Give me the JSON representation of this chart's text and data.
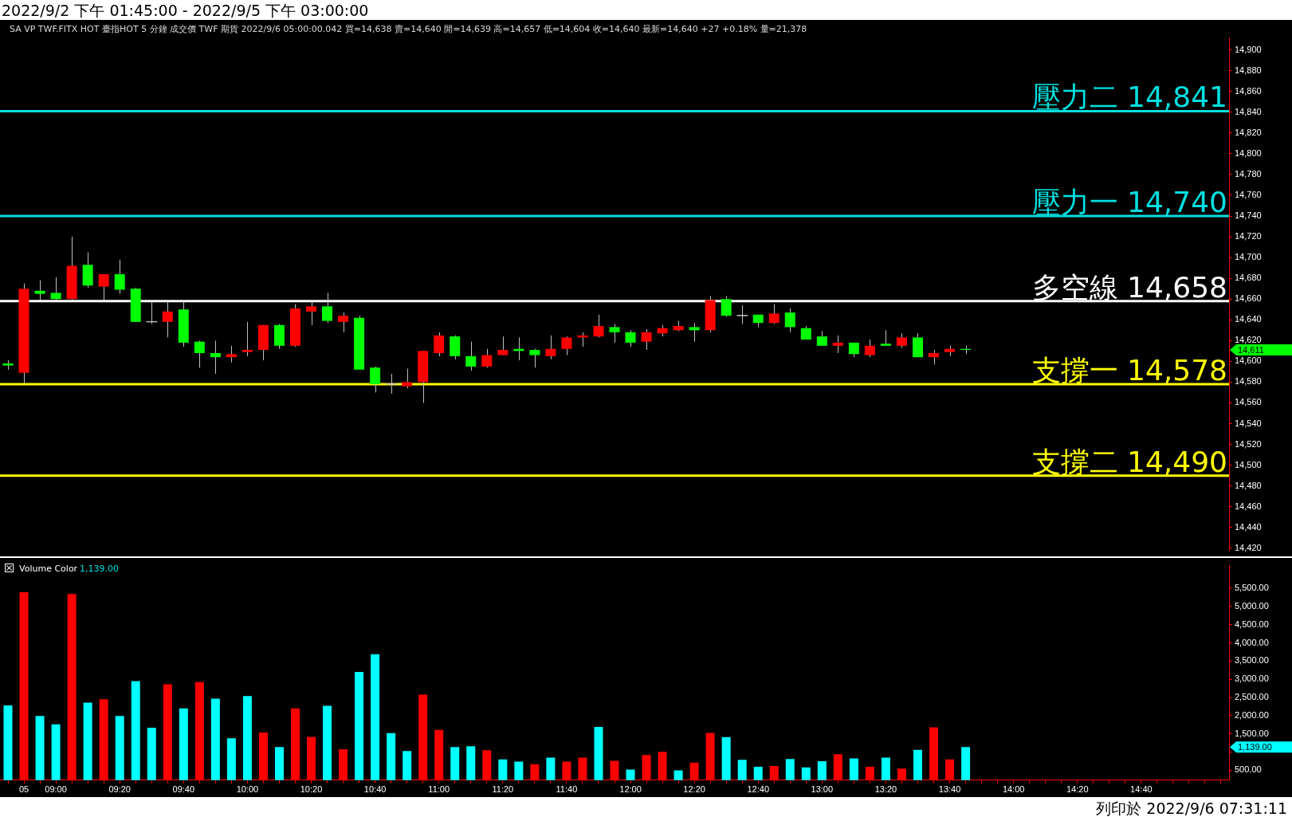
{
  "chart_data": [
    {
      "type": "candlestick",
      "title": "2022/9/2 下午 01:45:00 - 2022/9/5 下午 03:00:00",
      "subtitle": "SA VP TWF.FITX HOT 臺指HOT 5 分鐘 成交價 TWF 期貨 2022/9/6 05:00:00.042 買=14,638 賣=14,640 開=14,639 高=14,657 低=14,604 收=14,640 最新=14,640 +27 +0.18% 量=21,378",
      "categories": [
        null,
        null,
        null,
        null,
        null,
        null,
        null,
        null,
        null,
        null,
        null,
        null,
        null,
        null,
        null,
        null,
        null,
        null,
        null,
        null,
        null,
        null,
        null,
        null,
        null,
        null,
        null,
        null,
        null,
        null,
        null,
        null,
        null,
        null,
        null,
        null,
        null,
        null,
        null,
        null,
        null,
        null,
        null,
        null,
        null,
        null,
        null,
        null,
        null,
        null,
        null,
        null,
        null,
        null,
        null,
        null,
        null,
        null,
        null,
        null,
        null,
        null,
        null,
        null,
        null,
        null,
        null,
        null,
        null,
        null,
        null,
        null,
        null,
        null,
        null,
        null,
        null
      ],
      "ohlc": [
        [
          14598,
          14601,
          14592,
          14596
        ],
        [
          14589,
          14675,
          14579,
          14670
        ],
        [
          14668,
          14678,
          14659,
          14665
        ],
        [
          14666,
          14681,
          14659,
          14660
        ],
        [
          14660,
          14720,
          14659,
          14692
        ],
        [
          14693,
          14705,
          14671,
          14673
        ],
        [
          14672,
          14684,
          14659,
          14684
        ],
        [
          14684,
          14698,
          14665,
          14669
        ],
        [
          14670,
          14671,
          14638,
          14638
        ],
        [
          14638,
          14657,
          14636,
          14638
        ],
        [
          14638,
          14657,
          14623,
          14648
        ],
        [
          14650,
          14657,
          14614,
          14618
        ],
        [
          14619,
          14620,
          14594,
          14608
        ],
        [
          14608,
          14620,
          14588,
          14604
        ],
        [
          14604,
          14615,
          14599,
          14607
        ],
        [
          14609,
          14638,
          14605,
          14611
        ],
        [
          14611,
          14635,
          14601,
          14635
        ],
        [
          14635,
          14636,
          14612,
          14615
        ],
        [
          14615,
          14655,
          14614,
          14651
        ],
        [
          14648,
          14657,
          14635,
          14653
        ],
        [
          14653,
          14666,
          14637,
          14639
        ],
        [
          14638,
          14647,
          14628,
          14644
        ],
        [
          14642,
          14644,
          14592,
          14592
        ],
        [
          14594,
          14595,
          14570,
          14578
        ],
        [
          14578,
          14588,
          14569,
          14578
        ],
        [
          14576,
          14593,
          14574,
          14580
        ],
        [
          14580,
          14610,
          14560,
          14610
        ],
        [
          14608,
          14628,
          14605,
          14625
        ],
        [
          14624,
          14625,
          14602,
          14605
        ],
        [
          14605,
          14619,
          14591,
          14595
        ],
        [
          14595,
          14612,
          14594,
          14606
        ],
        [
          14606,
          14624,
          14606,
          14611
        ],
        [
          14612,
          14623,
          14601,
          14610
        ],
        [
          14611,
          14612,
          14594,
          14606
        ],
        [
          14605,
          14625,
          14602,
          14612
        ],
        [
          14612,
          14624,
          14606,
          14623
        ],
        [
          14623,
          14628,
          14614,
          14625
        ],
        [
          14624,
          14645,
          14623,
          14634
        ],
        [
          14633,
          14636,
          14618,
          14628
        ],
        [
          14628,
          14630,
          14614,
          14618
        ],
        [
          14619,
          14631,
          14611,
          14628
        ],
        [
          14627,
          14635,
          14624,
          14632
        ],
        [
          14630,
          14639,
          14629,
          14634
        ],
        [
          14633,
          14637,
          14619,
          14630
        ],
        [
          14630,
          14663,
          14628,
          14659
        ],
        [
          14660,
          14663,
          14643,
          14644
        ],
        [
          14644,
          14654,
          14636,
          14644
        ],
        [
          14645,
          14645,
          14633,
          14637
        ],
        [
          14637,
          14655,
          14636,
          14646
        ],
        [
          14647,
          14651,
          14628,
          14633
        ],
        [
          14632,
          14634,
          14621,
          14621
        ],
        [
          14624,
          14629,
          14615,
          14615
        ],
        [
          14615,
          14625,
          14608,
          14618
        ],
        [
          14618,
          14618,
          14604,
          14607
        ],
        [
          14606,
          14621,
          14604,
          14615
        ],
        [
          14617,
          14630,
          14615,
          14615
        ],
        [
          14615,
          14627,
          14613,
          14623
        ],
        [
          14623,
          14627,
          14604,
          14604
        ],
        [
          14604,
          14611,
          14597,
          14608
        ],
        [
          14609,
          14615,
          14605,
          14612
        ],
        [
          14612,
          14615,
          14607,
          14611
        ],
        null,
        null,
        null,
        null,
        null,
        null,
        null,
        null,
        null,
        null,
        null,
        null,
        null,
        null,
        null,
        null
      ],
      "colors": [
        "#00ff00",
        "#ff0000",
        "#00ff00",
        "#00ff00",
        "#ff0000",
        "#00ff00",
        "#ff0000",
        "#00ff00",
        "#00ff00",
        "#c0c0c0",
        "#ff0000",
        "#00ff00",
        "#00ff00",
        "#00ff00",
        "#ff0000",
        "#ff0000",
        "#ff0000",
        "#00ff00",
        "#ff0000",
        "#ff0000",
        "#00ff00",
        "#ff0000",
        "#00ff00",
        "#00ff00",
        "#c0c0c0",
        "#ff0000",
        "#ff0000",
        "#ff0000",
        "#00ff00",
        "#00ff00",
        "#ff0000",
        "#ff0000",
        "#00ff00",
        "#00ff00",
        "#ff0000",
        "#ff0000",
        "#ff0000",
        "#ff0000",
        "#00ff00",
        "#00ff00",
        "#ff0000",
        "#ff0000",
        "#ff0000",
        "#00ff00",
        "#ff0000",
        "#00ff00",
        "#c0c0c0",
        "#00ff00",
        "#ff0000",
        "#00ff00",
        "#00ff00",
        "#00ff00",
        "#ff0000",
        "#00ff00",
        "#ff0000",
        "#00ff00",
        "#ff0000",
        "#00ff00",
        "#ff0000",
        "#ff0000",
        "#00ff00",
        null,
        null,
        null,
        null,
        null,
        null,
        null,
        null,
        null,
        null,
        null,
        null,
        null,
        null,
        null,
        null
      ],
      "ylim": [
        14418,
        14912
      ],
      "yticks": [
        {
          "value": 14420,
          "label": "14,420"
        },
        {
          "value": 14440,
          "label": "14,440"
        },
        {
          "value": 14460,
          "label": "14,460"
        },
        {
          "value": 14480,
          "label": "14,480"
        },
        {
          "value": 14500,
          "label": "14,500"
        },
        {
          "value": 14520,
          "label": "14,520"
        },
        {
          "value": 14540,
          "label": "14,540"
        },
        {
          "value": 14560,
          "label": "14,560"
        },
        {
          "value": 14580,
          "label": "14,580"
        },
        {
          "value": 14600,
          "label": "14,600"
        },
        {
          "value": 14620,
          "label": "14,620"
        },
        {
          "value": 14640,
          "label": "14,640"
        },
        {
          "value": 14660,
          "label": "14,660"
        },
        {
          "value": 14680,
          "label": "14,680"
        },
        {
          "value": 14700,
          "label": "14,700"
        },
        {
          "value": 14720,
          "label": "14,720"
        },
        {
          "value": 14740,
          "label": "14,740"
        },
        {
          "value": 14760,
          "label": "14,760"
        },
        {
          "value": 14780,
          "label": "14,780"
        },
        {
          "value": 14800,
          "label": "14,800"
        },
        {
          "value": 14820,
          "label": "14,820"
        },
        {
          "value": 14840,
          "label": "14,840"
        },
        {
          "value": 14860,
          "label": "14,860"
        },
        {
          "value": 14880,
          "label": "14,880"
        },
        {
          "value": 14900,
          "label": "14,900"
        }
      ],
      "ref_lines": [
        {
          "axis": "y",
          "value": 14841,
          "label": "壓力二 14,841",
          "color": "#00e0e0"
        },
        {
          "axis": "y",
          "value": 14740,
          "label": "壓力一 14,740",
          "color": "#00e0e0"
        },
        {
          "axis": "y",
          "value": 14658,
          "label": "多空線 14,658",
          "color": "#ffffff"
        },
        {
          "axis": "y",
          "value": 14578,
          "label": "支撐一 14,578",
          "color": "#ffff00"
        },
        {
          "axis": "y",
          "value": 14490,
          "label": "支撐二 14,490",
          "color": "#ffff00"
        }
      ],
      "annotations": [
        "14,611"
      ],
      "tick_labels": "y"
    },
    {
      "type": "bar",
      "title": "Volume Color",
      "subtitle": "1,139.00",
      "categories": [
        null,
        "05",
        null,
        "09:00",
        null,
        null,
        null,
        "09:20",
        null,
        null,
        null,
        "09:40",
        null,
        null,
        null,
        "10:00",
        null,
        null,
        null,
        "10:20",
        null,
        null,
        null,
        "10:40",
        null,
        null,
        null,
        "11:00",
        null,
        null,
        null,
        "11:20",
        null,
        null,
        null,
        "11:40",
        null,
        null,
        null,
        "12:00",
        null,
        null,
        null,
        "12:20",
        null,
        null,
        null,
        "12:40",
        null,
        null,
        null,
        "13:00",
        null,
        null,
        null,
        "13:20",
        null,
        null,
        null,
        "13:40",
        null,
        null,
        null,
        "14:00",
        null,
        null,
        null,
        "14:20",
        null,
        null,
        null,
        "14:40",
        null,
        null,
        null,
        null,
        null
      ],
      "values": [
        2280,
        5390,
        1990,
        1760,
        5340,
        2360,
        2450,
        1990,
        2950,
        1670,
        2860,
        2200,
        2920,
        2470,
        1380,
        2540,
        1540,
        1140,
        2200,
        1420,
        2270,
        1080,
        3200,
        3690,
        1520,
        1030,
        2580,
        1610,
        1140,
        1160,
        1050,
        800,
        740,
        670,
        850,
        740,
        850,
        1690,
        760,
        520,
        920,
        1010,
        500,
        710,
        1530,
        1410,
        790,
        600,
        620,
        810,
        580,
        750,
        940,
        830,
        600,
        850,
        550,
        1060,
        1680,
        800,
        1139,
        null,
        null,
        null,
        null,
        null,
        null,
        null,
        null,
        null,
        null,
        null,
        null,
        null,
        null,
        null,
        null
      ],
      "colors": [
        "#00ffff",
        "#ff0000",
        "#00ffff",
        "#00ffff",
        "#ff0000",
        "#00ffff",
        "#ff0000",
        "#00ffff",
        "#00ffff",
        "#00ffff",
        "#ff0000",
        "#00ffff",
        "#ff0000",
        "#00ffff",
        "#00ffff",
        "#00ffff",
        "#ff0000",
        "#00ffff",
        "#ff0000",
        "#ff0000",
        "#00ffff",
        "#ff0000",
        "#00ffff",
        "#00ffff",
        "#00ffff",
        "#00ffff",
        "#ff0000",
        "#ff0000",
        "#00ffff",
        "#00ffff",
        "#ff0000",
        "#00ffff",
        "#00ffff",
        "#ff0000",
        "#00ffff",
        "#ff0000",
        "#ff0000",
        "#00ffff",
        "#ff0000",
        "#00ffff",
        "#ff0000",
        "#ff0000",
        "#00ffff",
        "#ff0000",
        "#ff0000",
        "#00ffff",
        "#00ffff",
        "#00ffff",
        "#ff0000",
        "#00ffff",
        "#00ffff",
        "#00ffff",
        "#ff0000",
        "#00ffff",
        "#ff0000",
        "#00ffff",
        "#ff0000",
        "#00ffff",
        "#ff0000",
        "#ff0000",
        "#00ffff",
        null,
        null,
        null,
        null,
        null,
        null,
        null,
        null,
        null,
        null,
        null,
        null,
        null,
        null,
        null,
        null
      ],
      "ylim": [
        230,
        6120
      ],
      "yticks": [
        {
          "value": 500,
          "label": "500.00"
        },
        {
          "value": 1000,
          "label": null
        },
        {
          "value": 1500,
          "label": "1,500.00"
        },
        {
          "value": 2000,
          "label": "2,000.00"
        },
        {
          "value": 2500,
          "label": "2,500.00"
        },
        {
          "value": 3000,
          "label": "3,000.00"
        },
        {
          "value": 3500,
          "label": "3,500.00"
        },
        {
          "value": 4000,
          "label": "4,000.00"
        },
        {
          "value": 4500,
          "label": "4,500.00"
        },
        {
          "value": 5000,
          "label": "5,000.00"
        },
        {
          "value": 5500,
          "label": "5,500.00"
        }
      ],
      "annotations": [
        "1,139.00",
        "列印於 2022/9/6 07:31:11"
      ]
    }
  ]
}
